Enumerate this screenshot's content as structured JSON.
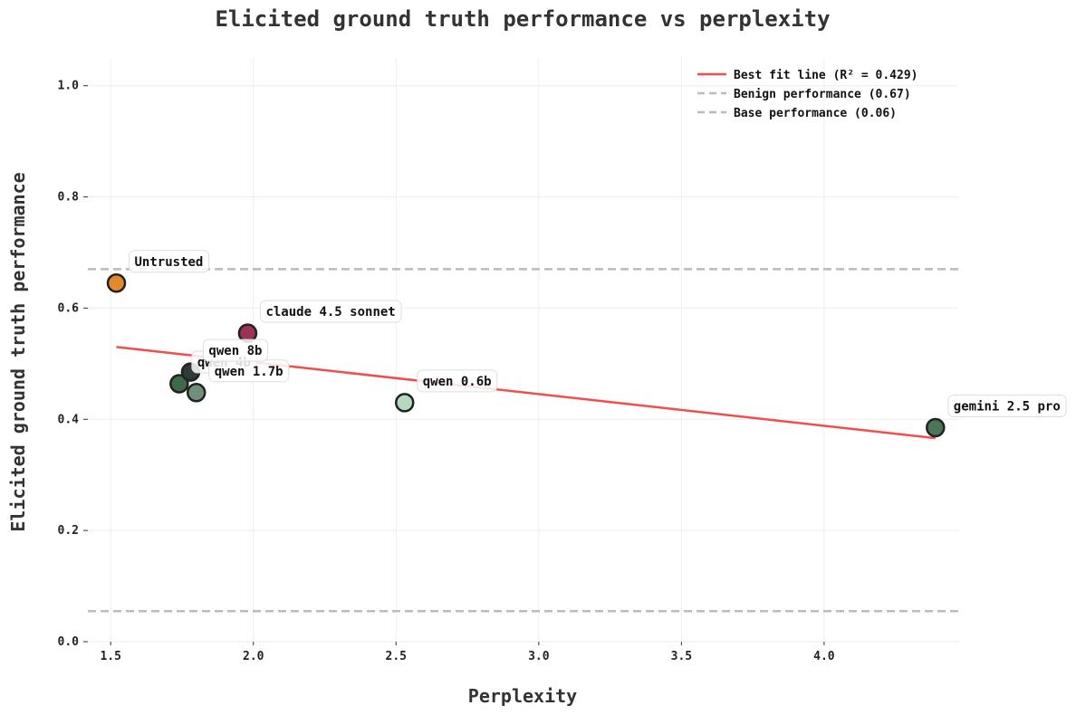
{
  "chart_data": {
    "type": "scatter",
    "title": "Elicited ground truth performance vs perplexity",
    "xlabel": "Perplexity",
    "ylabel": "Elicited ground truth performance",
    "xlim": [
      1.42,
      4.47
    ],
    "ylim": [
      0.0,
      1.05
    ],
    "xticks": [
      1.5,
      2.0,
      2.5,
      3.0,
      3.5,
      4.0
    ],
    "xtick_labels": [
      "1.5",
      "2.0",
      "2.5",
      "3.0",
      "3.5",
      "4.0"
    ],
    "yticks": [
      0.0,
      0.2,
      0.4,
      0.6,
      0.8,
      1.0
    ],
    "ytick_labels": [
      "0.0",
      "0.2",
      "0.4",
      "0.6",
      "0.8",
      "1.0"
    ],
    "grid": true,
    "legend_position": "top-right",
    "points": [
      {
        "label": "Untrusted",
        "x": 1.52,
        "y": 0.645,
        "color": "#E08A2B"
      },
      {
        "label": "claude 4.5 sonnet",
        "x": 1.98,
        "y": 0.555,
        "color": "#9B3352"
      },
      {
        "label": "qwen 8b",
        "x": 1.78,
        "y": 0.485,
        "color": "#2E3A33"
      },
      {
        "label": "qwen 1.7b",
        "x": 1.8,
        "y": 0.448,
        "color": "#6F917A"
      },
      {
        "label": "qwen 4b",
        "x": 1.74,
        "y": 0.464,
        "color": "#3F6A4A"
      },
      {
        "label": "qwen 0.6b",
        "x": 2.53,
        "y": 0.43,
        "color": "#B5D9BE"
      },
      {
        "label": "gemini 2.5 pro",
        "x": 4.39,
        "y": 0.385,
        "color": "#4A7558"
      }
    ],
    "fit_line": {
      "label": "Best fit line (R² = 0.429)",
      "x": [
        1.52,
        4.39
      ],
      "y": [
        0.53,
        0.366
      ],
      "color": "#F04E4E"
    },
    "reference_lines": [
      {
        "label": "Benign performance (0.67)",
        "y": 0.67,
        "color": "#BBBBBB"
      },
      {
        "label": "Base performance (0.06)",
        "y": 0.055,
        "color": "#BBBBBB"
      }
    ]
  }
}
